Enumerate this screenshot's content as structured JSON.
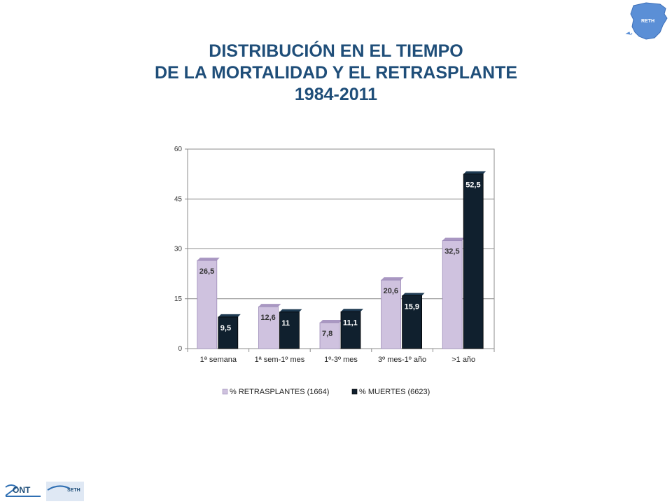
{
  "title": {
    "line1": "DISTRIBUCIÓN EN EL TIEMPO",
    "line2": "DE LA MORTALIDAD Y EL RETRASPLANTE",
    "line3": "1984-2011"
  },
  "logos": {
    "top_right_text": "RETH",
    "footer_left_text": "ONT",
    "footer_right_text": "SETH"
  },
  "colors": {
    "title": "#1f4e79",
    "retrasplantes": "#cfc2df",
    "muertes": "#10202e",
    "grid": "#8c8c8c",
    "map": "#5b8fd6"
  },
  "chart_data": {
    "type": "bar",
    "categories": [
      "1ª semana",
      "1ª sem-1º mes",
      "1º-3º mes",
      "3º mes-1º año",
      ">1 año"
    ],
    "series": [
      {
        "name": "% RETRASPLANTES (1664)",
        "values": [
          26.5,
          12.6,
          7.8,
          20.6,
          32.5
        ],
        "labels": [
          "26,5",
          "12,6",
          "7,8",
          "20,6",
          "32,5"
        ]
      },
      {
        "name": "% MUERTES (6623)",
        "values": [
          9.5,
          11,
          11.1,
          15.9,
          52.5
        ],
        "labels": [
          "9,5",
          "11",
          "11,1",
          "15,9",
          "52,5"
        ]
      }
    ],
    "yticks": [
      0,
      15,
      30,
      45,
      60
    ],
    "ylim": [
      0,
      60
    ],
    "grid": true,
    "legend": "bottom"
  }
}
